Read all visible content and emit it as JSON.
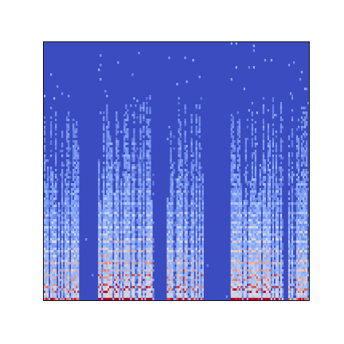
{
  "chart_data": {
    "type": "heatmap",
    "colormap": "coolwarm",
    "colors": {
      "background": "#3b4cc0",
      "low": "#3b4cc0",
      "mid_low": "#8db0fe",
      "mid": "#dddddd",
      "mid_high": "#f49a7b",
      "high": "#b40426"
    },
    "axes_visible": false,
    "grid": false,
    "title": "",
    "xlabel": "",
    "ylabel": "",
    "x_range": [
      0,
      1
    ],
    "y_range": [
      0,
      1
    ],
    "bursts": [
      {
        "start": 0.0,
        "end": 0.13,
        "energy": 0.85
      },
      {
        "start": 0.2,
        "end": 0.41,
        "energy": 1.0
      },
      {
        "start": 0.46,
        "end": 0.6,
        "energy": 0.9
      },
      {
        "start": 0.7,
        "end": 0.9,
        "energy": 0.95
      },
      {
        "start": 0.92,
        "end": 1.0,
        "energy": 0.85
      }
    ]
  }
}
